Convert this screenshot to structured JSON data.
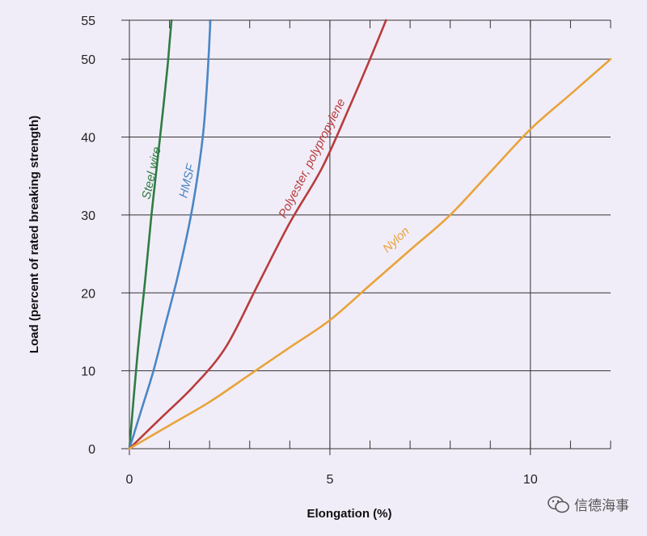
{
  "chart_data": {
    "type": "line",
    "xlabel": "Elongation (%)",
    "ylabel": "Load (percent of rated breaking strength)",
    "xlim": [
      0,
      12
    ],
    "ylim": [
      0,
      55
    ],
    "x_ticks": [
      0,
      5,
      10
    ],
    "y_ticks": [
      0,
      10,
      20,
      30,
      40,
      50,
      55
    ],
    "grid": true,
    "legend": "inline labels",
    "series": [
      {
        "name": "Steel wire",
        "color": "#2e7d43",
        "x": [
          0,
          0.2,
          0.4,
          0.55,
          0.7,
          0.85,
          0.95,
          1.0,
          1.05
        ],
        "y": [
          0,
          12,
          22,
          30,
          37,
          44,
          49,
          52,
          55
        ]
      },
      {
        "name": "HMSF",
        "color": "#4a86c5",
        "x": [
          0,
          0.3,
          0.6,
          0.9,
          1.2,
          1.5,
          1.7,
          1.85,
          1.95,
          2.02
        ],
        "y": [
          0,
          5,
          10,
          16,
          22,
          29,
          35,
          41,
          48,
          55
        ]
      },
      {
        "name": "Polyester, polypropylene",
        "color": "#b83c3c",
        "x": [
          0,
          0.8,
          1.6,
          2.4,
          3.2,
          4.0,
          4.8,
          5.5,
          6.0,
          6.4
        ],
        "y": [
          0,
          4,
          8,
          13,
          21,
          29,
          36,
          44,
          50,
          55
        ]
      },
      {
        "name": "Nylon",
        "color": "#e8a33a",
        "x": [
          0,
          1,
          2,
          3,
          4,
          5,
          6,
          7,
          8,
          9,
          10,
          11,
          12
        ],
        "y": [
          0,
          3,
          6,
          9.5,
          13,
          16.5,
          21,
          25.5,
          30,
          35.5,
          41,
          45.5,
          50
        ]
      }
    ]
  },
  "watermark": {
    "icon": "wechat-icon",
    "text": "信德海事"
  }
}
